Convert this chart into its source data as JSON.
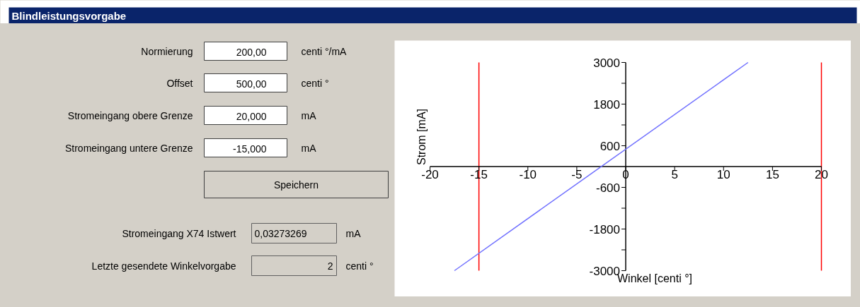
{
  "chart_data": [
    {
      "type": "other",
      "title": "Blindleistungsvorgabe",
      "annotations": [
        "Normierung",
        "200,00",
        "centi °/mA",
        "Offset",
        "500,00",
        "centi °",
        "Stromeingang obere Grenze",
        "20,000",
        "mA",
        "Stromeingang untere Grenze",
        "-15,000",
        "mA",
        "Speichern",
        "Stromeingang X74 Istwert",
        "0,03273269",
        "mA",
        "Letzte gesendete Winkelvorgabe",
        "2",
        "centi °"
      ]
    },
    {
      "type": "line",
      "xlabel": "Winkel [centi °]",
      "ylabel": "Strom [mA]",
      "xlim": [
        -20,
        20
      ],
      "ylim": [
        -3000,
        3000
      ],
      "xticks": [
        -20,
        -15,
        -10,
        -5,
        0,
        5,
        10,
        15,
        20
      ],
      "yticks": [
        -3000,
        {
          "value": -2400,
          "label": null
        },
        -1800,
        {
          "value": -1200,
          "label": null
        },
        -600,
        600,
        {
          "value": 1200,
          "label": null
        },
        1800,
        {
          "value": 2400,
          "label": null
        },
        3000
      ],
      "series": [
        {
          "color": "#7070ff",
          "x": [
            -17.5,
            12.5
          ],
          "values": [
            -3000,
            3000
          ]
        }
      ],
      "ref_lines": [
        {
          "axis": "x",
          "value": -15,
          "color": "#ff0000"
        },
        {
          "axis": "x",
          "value": 20,
          "color": "#ff0000"
        }
      ],
      "grid": false
    }
  ]
}
